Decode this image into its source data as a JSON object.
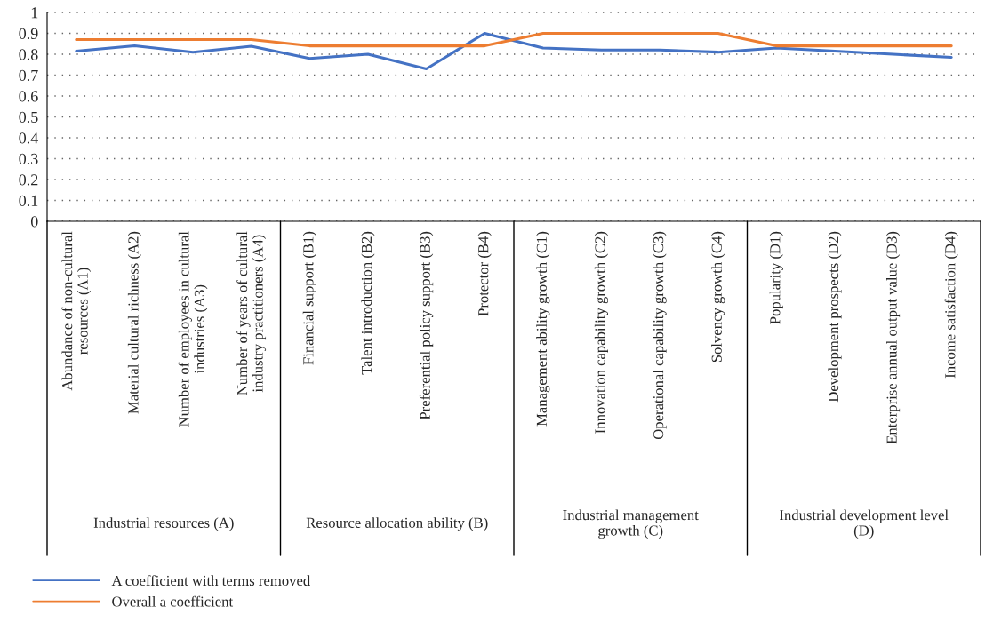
{
  "chart_data": {
    "type": "line",
    "categories": [
      "Abundance of non-cultural\nresources (A1)",
      "Material cultural richness (A2)",
      "Number of employees in cultural\nindustries (A3)",
      "Number of years of cultural\nindustry practitioners (A4)",
      "Financial support (B1)",
      "Talent introduction (B2)",
      "Preferential policy support (B3)",
      "Protector (B4)",
      "Management ability growth (C1)",
      "Innovation capability growth (C2)",
      "Operational capability growth (C3)",
      "Solvency growth (C4)",
      "Popularity (D1)",
      "Development prospects (D2)",
      "Enterprise annual output value (D3)",
      "Income satisfaction (D4)"
    ],
    "series": [
      {
        "name": "A coefficient with terms removed",
        "color": "#4472c4",
        "values": [
          0.815,
          0.84,
          0.81,
          0.838,
          0.78,
          0.8,
          0.73,
          0.9,
          0.83,
          0.82,
          0.82,
          0.81,
          0.83,
          0.815,
          0.8,
          0.785
        ]
      },
      {
        "name": "Overall a coefficient",
        "color": "#ed7d31",
        "values": [
          0.87,
          0.87,
          0.87,
          0.87,
          0.84,
          0.84,
          0.84,
          0.84,
          0.9,
          0.9,
          0.9,
          0.9,
          0.84,
          0.84,
          0.84,
          0.84
        ]
      }
    ],
    "annotations": [
      "Industrial resources (A)",
      "Resource allocation ability (B)",
      "Industrial management\ngrowth (C)",
      "Industrial development level\n(D)"
    ],
    "ylim": [
      0,
      1
    ],
    "yticks": [
      0,
      0.1,
      0.2,
      0.3,
      0.4,
      0.5,
      0.6,
      0.7,
      0.8,
      0.9,
      1
    ],
    "grid": "y",
    "legend": "bottom left",
    "marker": "none",
    "line_style": "solid"
  }
}
